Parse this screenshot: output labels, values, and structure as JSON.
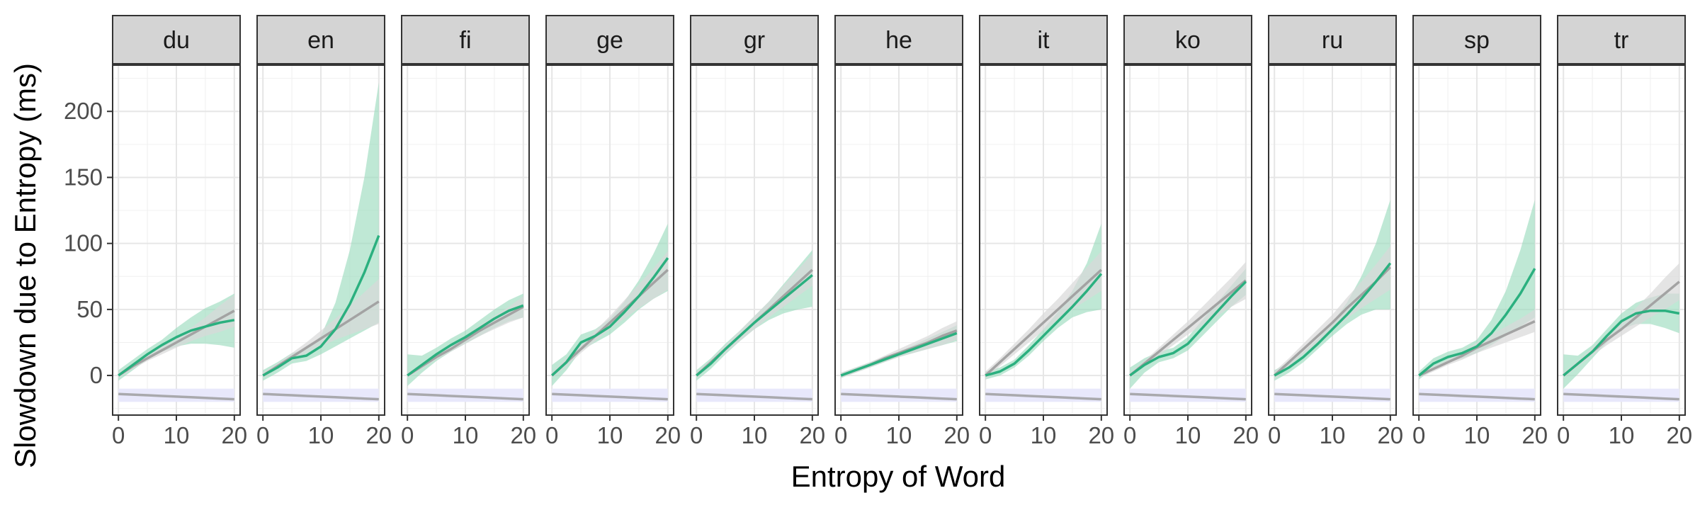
{
  "chart_data": {
    "type": "line",
    "xlabel": "Entropy of Word",
    "ylabel": "Slowdown due to Entropy (ms)",
    "xlim": [
      -1,
      21
    ],
    "ylim": [
      -30,
      235
    ],
    "x_ticks": [
      0,
      10,
      20
    ],
    "y_ticks": [
      0,
      50,
      100,
      150,
      200
    ],
    "grid": true,
    "legend": "none",
    "colors": {
      "model": "#2bb07f",
      "model_ribbon": "#9ddcbf",
      "baseline": "#a3a3a3",
      "baseline_ribbon": "#d9d9d9",
      "density": "#a9a9ad",
      "density_band": "#e8e8fb",
      "strip_fill": "#d4d4d4"
    },
    "x": [
      0,
      2.5,
      5,
      7.5,
      10,
      12.5,
      15,
      17.5,
      20
    ],
    "panels": [
      {
        "label": "du",
        "green": [
          0,
          8,
          16,
          23,
          29,
          34,
          37,
          40,
          42
        ],
        "green_lo": [
          -4,
          4,
          12,
          18,
          22,
          24,
          24,
          23,
          21
        ],
        "green_hi": [
          4,
          12,
          20,
          27,
          36,
          44,
          51,
          56,
          62
        ],
        "gray": [
          0,
          7,
          13,
          19,
          25,
          31,
          37,
          43,
          49
        ],
        "gray_lo": [
          -2,
          5,
          11,
          16,
          21,
          26,
          30,
          33,
          37
        ],
        "gray_hi": [
          2,
          9,
          15,
          22,
          29,
          36,
          44,
          53,
          61
        ],
        "density": [
          -14,
          -14.5,
          -15,
          -15.5,
          -16,
          -16.5,
          -17,
          -17.5,
          -18
        ]
      },
      {
        "label": "en",
        "green": [
          0,
          6,
          13,
          15,
          22,
          35,
          54,
          78,
          106
        ],
        "green_lo": [
          -4,
          2,
          9,
          11,
          16,
          22,
          28,
          34,
          40
        ],
        "green_hi": [
          4,
          10,
          17,
          20,
          30,
          55,
          95,
          150,
          222
        ],
        "gray": [
          0,
          7,
          14,
          21,
          28,
          35,
          42,
          49,
          56
        ],
        "gray_lo": [
          -2,
          5,
          11,
          17,
          22,
          27,
          31,
          35,
          39
        ],
        "gray_hi": [
          2,
          9,
          17,
          25,
          34,
          43,
          53,
          63,
          73
        ],
        "density": [
          -14,
          -14.5,
          -15,
          -15.5,
          -16,
          -16.5,
          -17,
          -17.5,
          -18
        ]
      },
      {
        "label": "fi",
        "green": [
          0,
          8,
          16,
          23,
          29,
          36,
          43,
          49,
          53
        ],
        "green_lo": [
          -8,
          2,
          11,
          18,
          24,
          30,
          36,
          41,
          44
        ],
        "green_hi": [
          16,
          15,
          21,
          28,
          34,
          42,
          50,
          57,
          62
        ],
        "gray": [
          0,
          7,
          14,
          20,
          27,
          34,
          40,
          46,
          52
        ],
        "gray_lo": [
          -2,
          5,
          12,
          18,
          24,
          30,
          35,
          40,
          44
        ],
        "gray_hi": [
          2,
          9,
          16,
          22,
          30,
          38,
          45,
          52,
          60
        ],
        "density": [
          -14,
          -14.5,
          -15,
          -15.5,
          -16,
          -16.5,
          -17,
          -17.5,
          -18
        ]
      },
      {
        "label": "ge",
        "green": [
          0,
          10,
          25,
          30,
          37,
          48,
          60,
          74,
          89
        ],
        "green_lo": [
          -8,
          4,
          19,
          25,
          31,
          40,
          50,
          58,
          64
        ],
        "green_hi": [
          8,
          16,
          31,
          35,
          43,
          56,
          72,
          92,
          115
        ],
        "gray": [
          0,
          10,
          20,
          30,
          40,
          50,
          60,
          70,
          80
        ],
        "gray_lo": [
          -2,
          7,
          17,
          26,
          35,
          43,
          51,
          58,
          65
        ],
        "gray_hi": [
          2,
          13,
          23,
          34,
          45,
          57,
          69,
          81,
          94
        ],
        "density": [
          -14,
          -14.5,
          -15,
          -15.5,
          -16,
          -16.5,
          -17,
          -17.5,
          -18
        ]
      },
      {
        "label": "gr",
        "green": [
          0,
          9,
          20,
          30,
          40,
          49,
          58,
          67,
          76
        ],
        "green_lo": [
          -4,
          5,
          16,
          26,
          35,
          42,
          47,
          50,
          52
        ],
        "green_hi": [
          4,
          13,
          24,
          34,
          45,
          56,
          69,
          82,
          95
        ],
        "gray": [
          0,
          10,
          20,
          30,
          40,
          50,
          60,
          70,
          80
        ],
        "gray_lo": [
          -2,
          8,
          17,
          26,
          35,
          44,
          52,
          60,
          68
        ],
        "gray_hi": [
          2,
          12,
          23,
          34,
          45,
          56,
          68,
          80,
          92
        ],
        "density": [
          -14,
          -14.5,
          -15,
          -15.5,
          -16,
          -16.5,
          -17,
          -17.5,
          -18
        ]
      },
      {
        "label": "he",
        "green": [
          0,
          4,
          8,
          12,
          16,
          20,
          24,
          28,
          32
        ],
        "green_lo": [
          -2,
          2,
          6,
          10,
          14,
          17,
          20,
          23,
          26
        ],
        "green_hi": [
          2,
          6,
          10,
          14,
          18,
          23,
          28,
          33,
          38
        ],
        "gray": [
          0,
          4,
          8,
          13,
          17,
          21,
          25,
          30,
          34
        ],
        "gray_lo": [
          -2,
          2,
          6,
          10,
          14,
          17,
          20,
          23,
          27
        ],
        "gray_hi": [
          2,
          6,
          10,
          15,
          20,
          25,
          30,
          36,
          41
        ],
        "density": [
          -14,
          -14.5,
          -15,
          -15.5,
          -16,
          -16.5,
          -17,
          -17.5,
          -18
        ]
      },
      {
        "label": "it",
        "green": [
          0,
          3,
          9,
          19,
          30,
          41,
          52,
          64,
          77
        ],
        "green_lo": [
          -3,
          0,
          6,
          15,
          26,
          36,
          44,
          48,
          50
        ],
        "green_hi": [
          3,
          6,
          12,
          23,
          35,
          48,
          64,
          85,
          115
        ],
        "gray": [
          0,
          10,
          20,
          30,
          40,
          50,
          60,
          70,
          80
        ],
        "gray_lo": [
          -3,
          7,
          16,
          25,
          34,
          42,
          50,
          57,
          64
        ],
        "gray_hi": [
          3,
          13,
          24,
          35,
          47,
          58,
          70,
          82,
          94
        ],
        "density": [
          -14,
          -14.5,
          -15,
          -15.5,
          -16,
          -16.5,
          -17,
          -17.5,
          -18
        ]
      },
      {
        "label": "ko",
        "green": [
          0,
          8,
          14,
          17,
          24,
          36,
          48,
          60,
          71
        ],
        "green_lo": [
          -10,
          2,
          10,
          13,
          19,
          30,
          41,
          52,
          61
        ],
        "green_hi": [
          6,
          13,
          18,
          21,
          29,
          42,
          55,
          68,
          81
        ],
        "gray": [
          0,
          9,
          18,
          27,
          36,
          45,
          54,
          63,
          72
        ],
        "gray_lo": [
          -2,
          7,
          15,
          23,
          31,
          38,
          45,
          52,
          58
        ],
        "gray_hi": [
          2,
          11,
          21,
          31,
          41,
          52,
          63,
          74,
          86
        ],
        "density": [
          -14,
          -14.5,
          -15,
          -15.5,
          -16,
          -16.5,
          -17,
          -17.5,
          -18
        ]
      },
      {
        "label": "ru",
        "green": [
          0,
          6,
          14,
          24,
          35,
          46,
          58,
          71,
          85
        ],
        "green_lo": [
          -4,
          2,
          10,
          20,
          30,
          39,
          46,
          50,
          50
        ],
        "green_hi": [
          4,
          10,
          18,
          28,
          40,
          55,
          75,
          100,
          133
        ],
        "gray": [
          0,
          10,
          20,
          30,
          40,
          51,
          61,
          71,
          82
        ],
        "gray_lo": [
          -3,
          7,
          16,
          25,
          34,
          43,
          51,
          58,
          65
        ],
        "gray_hi": [
          3,
          13,
          24,
          35,
          46,
          59,
          71,
          84,
          98
        ],
        "density": [
          -14,
          -14.5,
          -15,
          -15.5,
          -16,
          -16.5,
          -17,
          -17.5,
          -18
        ]
      },
      {
        "label": "sp",
        "green": [
          0,
          9,
          14,
          17,
          22,
          32,
          46,
          62,
          81
        ],
        "green_lo": [
          -3,
          5,
          10,
          13,
          17,
          23,
          30,
          37,
          44
        ],
        "green_hi": [
          3,
          13,
          18,
          21,
          27,
          42,
          64,
          95,
          133
        ],
        "gray": [
          0,
          5,
          10,
          15,
          21,
          26,
          31,
          36,
          41
        ],
        "gray_lo": [
          -2,
          3,
          8,
          12,
          17,
          21,
          25,
          29,
          33
        ],
        "gray_hi": [
          2,
          7,
          12,
          18,
          25,
          31,
          37,
          43,
          50
        ],
        "density": [
          -14,
          -14.5,
          -15,
          -15.5,
          -16,
          -16.5,
          -17,
          -17.5,
          -18
        ]
      },
      {
        "label": "tr",
        "green": [
          0,
          9,
          18,
          30,
          41,
          47,
          49,
          49,
          47
        ],
        "green_lo": [
          -10,
          1,
          13,
          25,
          35,
          39,
          39,
          36,
          32
        ],
        "green_hi": [
          16,
          15,
          23,
          35,
          47,
          55,
          59,
          62,
          62
        ],
        "gray": [
          0,
          9,
          18,
          27,
          35,
          44,
          53,
          62,
          71
        ],
        "gray_lo": [
          -2,
          7,
          15,
          23,
          30,
          37,
          44,
          50,
          57
        ],
        "gray_hi": [
          2,
          11,
          21,
          31,
          40,
          51,
          62,
          74,
          85
        ],
        "density": [
          -14,
          -14.5,
          -15,
          -15.5,
          -16,
          -16.5,
          -17,
          -17.5,
          -18
        ]
      }
    ]
  }
}
